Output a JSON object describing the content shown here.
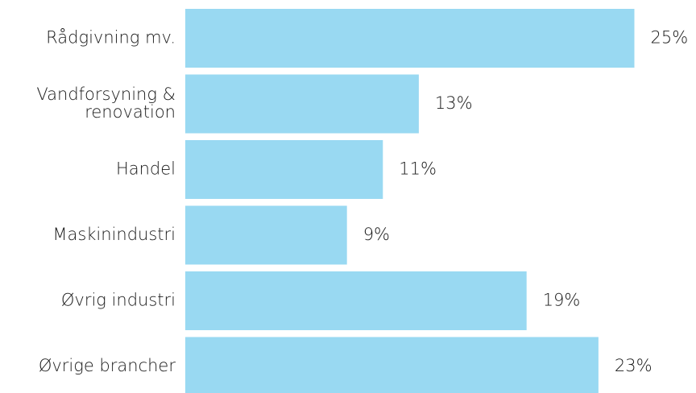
{
  "chart_data": {
    "type": "bar",
    "orientation": "horizontal",
    "categories": [
      "Rådgivning mv.",
      "Vandforsyning &\nrenovation",
      "Handel",
      "Maskinindustri",
      "Øvrig industri",
      "Øvrige brancher"
    ],
    "values": [
      25,
      13,
      11,
      9,
      19,
      23
    ],
    "value_labels": [
      "25%",
      "13%",
      "11%",
      "9%",
      "19%",
      "23%"
    ],
    "color": "#99d9f2"
  }
}
